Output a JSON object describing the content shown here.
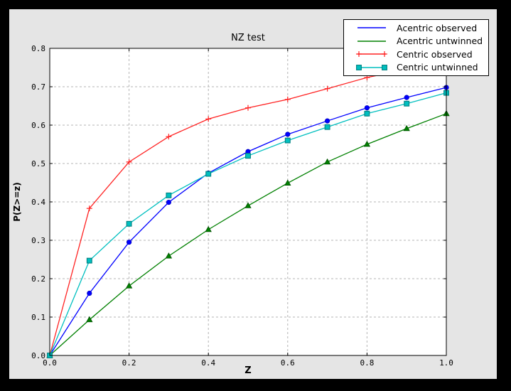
{
  "window": {
    "outer_background": "#000000",
    "figure_background": "#e5e5e5",
    "plot_background": "#ffffff",
    "grid_color": "#b4b4b4",
    "spine_color": "#000000"
  },
  "chart_data": {
    "type": "line",
    "title": "NZ test",
    "xlabel": "Z",
    "ylabel": "P(Z>=z)",
    "xlim": [
      0.0,
      1.0
    ],
    "ylim": [
      0.0,
      0.8
    ],
    "x_ticks": [
      0.0,
      0.2,
      0.4,
      0.6,
      0.8,
      1.0
    ],
    "x_tick_labels": [
      "0.0",
      "0.2",
      "0.4",
      "0.6",
      "0.8",
      "1.0"
    ],
    "y_ticks": [
      0.0,
      0.1,
      0.2,
      0.3,
      0.4,
      0.5,
      0.6,
      0.7,
      0.8
    ],
    "y_tick_labels": [
      "0.0",
      "0.1",
      "0.2",
      "0.3",
      "0.4",
      "0.5",
      "0.6",
      "0.7",
      "0.8"
    ],
    "grid": true,
    "legend_position": "upper right",
    "x": [
      0.0,
      0.1,
      0.2,
      0.3,
      0.4,
      0.5,
      0.6,
      0.7,
      0.8,
      0.9,
      1.0
    ],
    "series": [
      {
        "name": "Acentric observed",
        "color": "#0000ff",
        "edge_color": "#0000c0",
        "marker": "circle",
        "legend_marker": "none",
        "values": [
          0.0,
          0.162,
          0.295,
          0.399,
          0.475,
          0.531,
          0.576,
          0.611,
          0.645,
          0.672,
          0.698
        ]
      },
      {
        "name": "Acentric untwinned",
        "color": "#008000",
        "edge_color": "#005000",
        "marker": "triangle",
        "legend_marker": "none",
        "values": [
          0.0,
          0.093,
          0.181,
          0.259,
          0.328,
          0.39,
          0.449,
          0.504,
          0.55,
          0.591,
          0.63
        ]
      },
      {
        "name": "Centric observed",
        "color": "#ff2222",
        "edge_color": "#ff2222",
        "marker": "plus",
        "legend_marker": "plus",
        "values": [
          0.0,
          0.383,
          0.504,
          0.57,
          0.616,
          0.645,
          0.667,
          0.695,
          0.724,
          0.745,
          0.763
        ]
      },
      {
        "name": "Centric untwinned",
        "color": "#00bfbf",
        "edge_color": "#008080",
        "marker": "square",
        "legend_marker": "square",
        "values": [
          0.0,
          0.247,
          0.343,
          0.417,
          0.473,
          0.52,
          0.56,
          0.595,
          0.63,
          0.656,
          0.684
        ]
      }
    ]
  }
}
